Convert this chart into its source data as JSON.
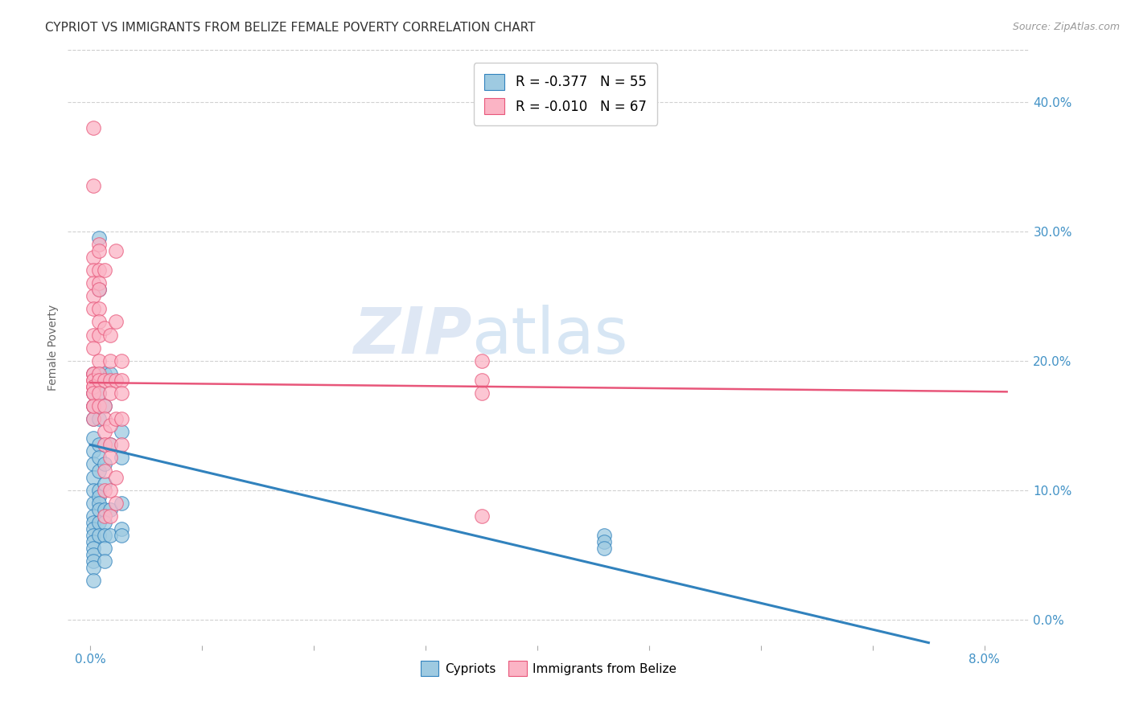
{
  "title": "CYPRIOT VS IMMIGRANTS FROM BELIZE FEMALE POVERTY CORRELATION CHART",
  "source": "Source: ZipAtlas.com",
  "ylabel": "Female Poverty",
  "x_tick_positions": [
    0.0,
    0.01,
    0.02,
    0.03,
    0.04,
    0.05,
    0.06,
    0.07,
    0.08
  ],
  "x_tick_labels_shown": {
    "0": "0.0%",
    "8": "8.0%"
  },
  "y_ticks": [
    0.0,
    0.1,
    0.2,
    0.3,
    0.4
  ],
  "y_tick_labels": [
    "0.0%",
    "10.0%",
    "20.0%",
    "30.0%",
    "40.0%"
  ],
  "xlim": [
    -0.002,
    0.084
  ],
  "ylim": [
    -0.02,
    0.44
  ],
  "legend_label1": "R = -0.377   N = 55",
  "legend_label2": "R = -0.010   N = 67",
  "legend_labels_bottom": [
    "Cypriots",
    "Immigrants from Belize"
  ],
  "color_blue": "#9ecae1",
  "color_pink": "#fbb4c5",
  "color_blue_dark": "#3182bd",
  "color_pink_dark": "#e8567a",
  "color_axis_labels": "#4292c6",
  "watermark_zip": "ZIP",
  "watermark_atlas": "atlas",
  "cypriot_x": [
    0.0003,
    0.0003,
    0.0003,
    0.0003,
    0.0003,
    0.0003,
    0.0003,
    0.0003,
    0.0003,
    0.0003,
    0.0003,
    0.0003,
    0.0003,
    0.0003,
    0.0003,
    0.0003,
    0.0003,
    0.0003,
    0.0003,
    0.0003,
    0.0008,
    0.0008,
    0.0008,
    0.0008,
    0.0008,
    0.0008,
    0.0008,
    0.0008,
    0.0008,
    0.0008,
    0.0008,
    0.0008,
    0.0008,
    0.0008,
    0.0013,
    0.0013,
    0.0013,
    0.0013,
    0.0013,
    0.0013,
    0.0013,
    0.0013,
    0.0013,
    0.0018,
    0.0018,
    0.0018,
    0.0018,
    0.0028,
    0.0028,
    0.0028,
    0.0028,
    0.0028,
    0.046,
    0.046,
    0.046
  ],
  "cypriot_y": [
    0.19,
    0.175,
    0.165,
    0.155,
    0.14,
    0.13,
    0.12,
    0.11,
    0.1,
    0.09,
    0.08,
    0.075,
    0.07,
    0.065,
    0.06,
    0.055,
    0.05,
    0.045,
    0.04,
    0.03,
    0.295,
    0.255,
    0.19,
    0.175,
    0.155,
    0.135,
    0.125,
    0.115,
    0.1,
    0.095,
    0.09,
    0.085,
    0.075,
    0.065,
    0.19,
    0.165,
    0.12,
    0.105,
    0.085,
    0.075,
    0.065,
    0.055,
    0.045,
    0.19,
    0.135,
    0.085,
    0.065,
    0.145,
    0.125,
    0.09,
    0.07,
    0.065,
    0.065,
    0.06,
    0.055
  ],
  "belize_x": [
    0.0003,
    0.0003,
    0.0003,
    0.0003,
    0.0003,
    0.0003,
    0.0003,
    0.0003,
    0.0003,
    0.0003,
    0.0003,
    0.0003,
    0.0003,
    0.0003,
    0.0003,
    0.0003,
    0.0003,
    0.0003,
    0.0003,
    0.0003,
    0.0008,
    0.0008,
    0.0008,
    0.0008,
    0.0008,
    0.0008,
    0.0008,
    0.0008,
    0.0008,
    0.0008,
    0.0008,
    0.0008,
    0.0008,
    0.0013,
    0.0013,
    0.0013,
    0.0013,
    0.0013,
    0.0013,
    0.0013,
    0.0013,
    0.0013,
    0.0013,
    0.0018,
    0.0018,
    0.0018,
    0.0018,
    0.0018,
    0.0018,
    0.0018,
    0.0018,
    0.0018,
    0.0023,
    0.0023,
    0.0023,
    0.0023,
    0.0023,
    0.0023,
    0.0028,
    0.0028,
    0.0028,
    0.0028,
    0.0028,
    0.035,
    0.035,
    0.035,
    0.035
  ],
  "belize_y": [
    0.38,
    0.335,
    0.28,
    0.27,
    0.26,
    0.25,
    0.24,
    0.22,
    0.21,
    0.19,
    0.185,
    0.18,
    0.175,
    0.165,
    0.155,
    0.19,
    0.185,
    0.18,
    0.175,
    0.165,
    0.29,
    0.285,
    0.27,
    0.26,
    0.255,
    0.24,
    0.23,
    0.22,
    0.2,
    0.19,
    0.185,
    0.175,
    0.165,
    0.27,
    0.225,
    0.185,
    0.165,
    0.155,
    0.145,
    0.135,
    0.115,
    0.1,
    0.08,
    0.22,
    0.2,
    0.185,
    0.175,
    0.15,
    0.135,
    0.125,
    0.1,
    0.08,
    0.285,
    0.23,
    0.185,
    0.155,
    0.11,
    0.09,
    0.2,
    0.185,
    0.175,
    0.155,
    0.135,
    0.2,
    0.185,
    0.175,
    0.08
  ],
  "blue_line_x": [
    0.0,
    0.075
  ],
  "blue_line_y": [
    0.135,
    -0.018
  ],
  "pink_line_x": [
    0.0,
    0.082
  ],
  "pink_line_y": [
    0.183,
    0.176
  ],
  "background_color": "#ffffff",
  "grid_color": "#cccccc"
}
